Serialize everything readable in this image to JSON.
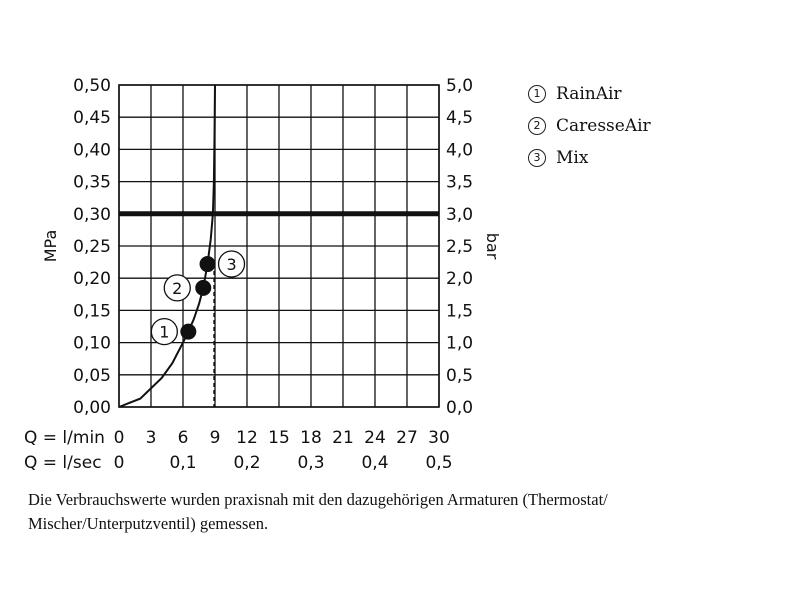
{
  "chart_data": {
    "type": "line",
    "ylabel_left": "MPa",
    "ylabel_right": "bar",
    "y_left_ticks": [
      "0,00",
      "0,05",
      "0,10",
      "0,15",
      "0,20",
      "0,25",
      "0,30",
      "0,35",
      "0,40",
      "0,45",
      "0,50"
    ],
    "y_right_ticks": [
      "0,0",
      "0,5",
      "1,0",
      "1,5",
      "2,0",
      "2,5",
      "3,0",
      "3,5",
      "4,0",
      "4,5",
      "5,0"
    ],
    "ylim": [
      0,
      0.5
    ],
    "x_lmin_label": "Q = l/min",
    "x_lmin_ticks": [
      "0",
      "3",
      "6",
      "9",
      "12",
      "15",
      "18",
      "21",
      "24",
      "27",
      "30"
    ],
    "x_lsec_label": "Q = l/sec",
    "x_lsec_ticks": [
      "0",
      "0,1",
      "0,2",
      "0,3",
      "0,4",
      "0,5"
    ],
    "xlim": [
      0,
      30
    ],
    "grid": true,
    "reference_line_y": 0.3,
    "dashed_line_x": 8.9,
    "curve": {
      "x": [
        0,
        2,
        4,
        5,
        6,
        6.5,
        7,
        7.5,
        7.9,
        8.3,
        8.6,
        8.8,
        8.9,
        8.95,
        9.0
      ],
      "y": [
        0,
        0.013,
        0.045,
        0.068,
        0.1,
        0.117,
        0.136,
        0.16,
        0.185,
        0.222,
        0.26,
        0.3,
        0.35,
        0.42,
        0.5
      ]
    },
    "points": [
      {
        "label": "1",
        "name": "RainAir",
        "x": 6.5,
        "y": 0.117
      },
      {
        "label": "2",
        "name": "CaresseAir",
        "x": 7.9,
        "y": 0.185
      },
      {
        "label": "3",
        "name": "Mix",
        "x": 8.3,
        "y": 0.222
      }
    ]
  },
  "legend": [
    {
      "num": "1",
      "label": "RainAir"
    },
    {
      "num": "2",
      "label": "CaresseAir"
    },
    {
      "num": "3",
      "label": "Mix"
    }
  ],
  "caption": "Die Verbrauchswerte wurden praxisnah mit den dazugehörigen Armaturen (Thermostat/ Mischer/Unterputzventil) gemessen."
}
